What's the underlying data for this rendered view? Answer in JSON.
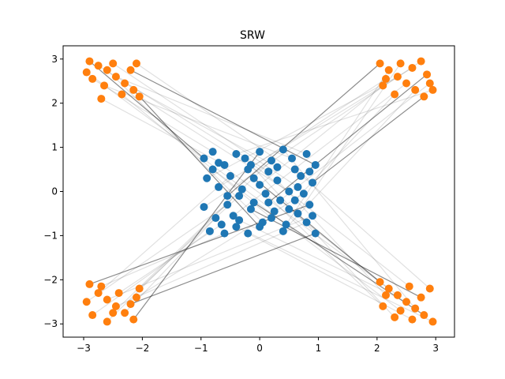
{
  "chart_data": {
    "type": "scatter",
    "title": "SRW",
    "xlabel": "",
    "ylabel": "",
    "xlim": [
      -3.35,
      3.32
    ],
    "ylim": [
      -3.3,
      3.3
    ],
    "xticks": [
      -3,
      -2,
      -1,
      0,
      1,
      2,
      3
    ],
    "yticks": [
      -3,
      -2,
      -1,
      0,
      1,
      2,
      3
    ],
    "xtick_labels": [
      "−3",
      "−2",
      "−1",
      "0",
      "1",
      "2",
      "3"
    ],
    "ytick_labels": [
      "−3",
      "−2",
      "−1",
      "0",
      "1",
      "2",
      "3"
    ],
    "grid": false,
    "legend": "none",
    "colors": {
      "source": "#1f77b4",
      "target": "#ff7f0e",
      "matching_line": "#000000"
    },
    "series": [
      {
        "points": [
          [
            -0.95,
            0.75
          ],
          [
            -0.8,
            0.9
          ],
          [
            -0.6,
            0.6
          ],
          [
            -0.4,
            0.85
          ],
          [
            -0.2,
            0.5
          ],
          [
            0.0,
            0.9
          ],
          [
            0.2,
            0.7
          ],
          [
            0.4,
            0.95
          ],
          [
            0.6,
            0.5
          ],
          [
            0.8,
            0.85
          ],
          [
            0.95,
            0.6
          ],
          [
            -0.9,
            0.3
          ],
          [
            -0.7,
            0.1
          ],
          [
            -0.5,
            0.35
          ],
          [
            -0.3,
            0.05
          ],
          [
            -0.1,
            0.3
          ],
          [
            0.1,
            -0.05
          ],
          [
            0.3,
            0.25
          ],
          [
            0.5,
            0.0
          ],
          [
            0.7,
            0.35
          ],
          [
            0.9,
            0.2
          ],
          [
            -0.95,
            -0.35
          ],
          [
            -0.75,
            -0.6
          ],
          [
            -0.55,
            -0.3
          ],
          [
            -0.35,
            -0.65
          ],
          [
            -0.15,
            -0.4
          ],
          [
            0.05,
            -0.7
          ],
          [
            0.25,
            -0.45
          ],
          [
            0.45,
            -0.75
          ],
          [
            0.65,
            -0.5
          ],
          [
            0.85,
            -0.3
          ],
          [
            -0.85,
            -0.9
          ],
          [
            -0.6,
            -0.95
          ],
          [
            -0.4,
            -0.8
          ],
          [
            -0.2,
            -0.95
          ],
          [
            0.0,
            -0.8
          ],
          [
            0.2,
            -0.6
          ],
          [
            0.4,
            -0.9
          ],
          [
            0.6,
            -0.2
          ],
          [
            0.8,
            -0.7
          ],
          [
            0.95,
            -0.95
          ],
          [
            -0.7,
            0.65
          ],
          [
            -0.25,
            0.75
          ],
          [
            0.15,
            0.45
          ],
          [
            0.55,
            0.75
          ],
          [
            -0.55,
            -0.1
          ],
          [
            0.0,
            0.15
          ],
          [
            0.35,
            -0.2
          ],
          [
            -0.35,
            -0.1
          ],
          [
            0.75,
            -0.05
          ],
          [
            -0.1,
            -0.25
          ],
          [
            -0.8,
            0.5
          ],
          [
            0.3,
            0.55
          ],
          [
            0.65,
            0.1
          ],
          [
            -0.45,
            -0.55
          ],
          [
            0.15,
            -0.25
          ],
          [
            0.9,
            -0.55
          ],
          [
            -0.65,
            -0.75
          ],
          [
            0.5,
            -0.4
          ],
          [
            -0.15,
            0.6
          ],
          [
            0.85,
            0.45
          ]
        ]
      },
      {
        "points": [
          [
            -2.9,
            2.95
          ],
          [
            -2.75,
            2.85
          ],
          [
            -2.6,
            2.75
          ],
          [
            -2.45,
            2.6
          ],
          [
            -2.3,
            2.45
          ],
          [
            -2.15,
            2.3
          ],
          [
            -2.05,
            2.15
          ],
          [
            -2.85,
            2.55
          ],
          [
            -2.65,
            2.4
          ],
          [
            -2.95,
            2.7
          ],
          [
            -2.2,
            2.75
          ],
          [
            -2.5,
            2.9
          ],
          [
            -2.35,
            2.2
          ],
          [
            -2.1,
            2.9
          ],
          [
            -2.7,
            2.1
          ],
          [
            2.05,
            2.9
          ],
          [
            2.2,
            2.75
          ],
          [
            2.35,
            2.6
          ],
          [
            2.5,
            2.45
          ],
          [
            2.65,
            2.3
          ],
          [
            2.8,
            2.15
          ],
          [
            2.95,
            2.3
          ],
          [
            2.1,
            2.4
          ],
          [
            2.4,
            2.9
          ],
          [
            2.6,
            2.8
          ],
          [
            2.85,
            2.65
          ],
          [
            2.3,
            2.2
          ],
          [
            2.75,
            2.95
          ],
          [
            2.15,
            2.55
          ],
          [
            2.9,
            2.45
          ],
          [
            -2.9,
            -2.1
          ],
          [
            -2.75,
            -2.3
          ],
          [
            -2.6,
            -2.45
          ],
          [
            -2.45,
            -2.6
          ],
          [
            -2.3,
            -2.75
          ],
          [
            -2.15,
            -2.9
          ],
          [
            -2.05,
            -2.2
          ],
          [
            -2.85,
            -2.8
          ],
          [
            -2.6,
            -2.95
          ],
          [
            -2.4,
            -2.3
          ],
          [
            -2.2,
            -2.55
          ],
          [
            -2.95,
            -2.5
          ],
          [
            -2.5,
            -2.75
          ],
          [
            -2.1,
            -2.4
          ],
          [
            -2.7,
            -2.15
          ],
          [
            2.05,
            -2.05
          ],
          [
            2.2,
            -2.2
          ],
          [
            2.35,
            -2.35
          ],
          [
            2.5,
            -2.5
          ],
          [
            2.65,
            -2.65
          ],
          [
            2.8,
            -2.8
          ],
          [
            2.95,
            -2.95
          ],
          [
            2.1,
            -2.6
          ],
          [
            2.3,
            -2.85
          ],
          [
            2.55,
            -2.15
          ],
          [
            2.75,
            -2.4
          ],
          [
            2.9,
            -2.2
          ],
          [
            2.4,
            -2.7
          ],
          [
            2.6,
            -2.9
          ],
          [
            2.15,
            -2.35
          ]
        ]
      }
    ]
  }
}
